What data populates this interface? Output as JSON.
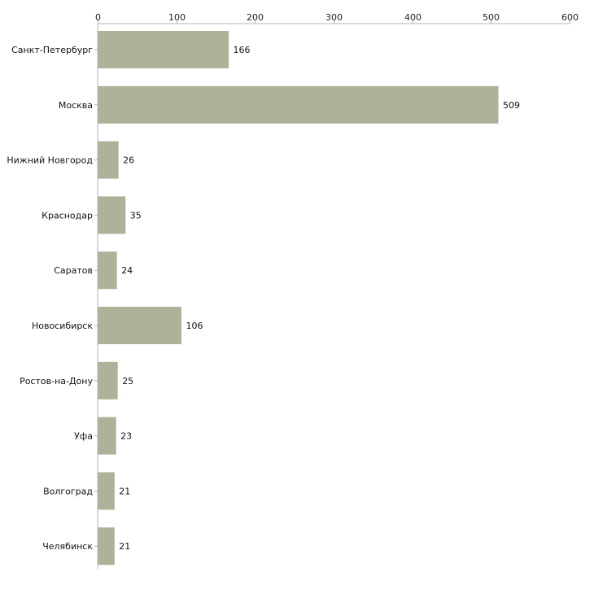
{
  "chart_data": {
    "type": "bar",
    "orientation": "horizontal",
    "title": "",
    "xlabel": "",
    "ylabel": "",
    "categories": [
      "Санкт-Петербург",
      "Москва",
      "Нижний Новгород",
      "Краснодар",
      "Саратов",
      "Новосибирск",
      "Ростов-на-Дону",
      "Уфа",
      "Волгоград",
      "Челябинск"
    ],
    "values": [
      166,
      509,
      26,
      35,
      24,
      106,
      25,
      23,
      21,
      21
    ],
    "value_labels": [
      "166",
      "509",
      "26",
      "35",
      "24",
      "106",
      "25",
      "23",
      "21",
      "21"
    ],
    "xlim": [
      0,
      600
    ],
    "ticks": [
      0,
      100,
      200,
      300,
      400,
      500,
      600
    ],
    "tick_labels": [
      "0",
      "100",
      "200",
      "300",
      "400",
      "500",
      "600"
    ],
    "axis_position": "top",
    "grid": false,
    "legend": "none",
    "colors": {
      "bar": "#adb298",
      "axis": "#b4b4b4",
      "text": "#111111"
    }
  }
}
